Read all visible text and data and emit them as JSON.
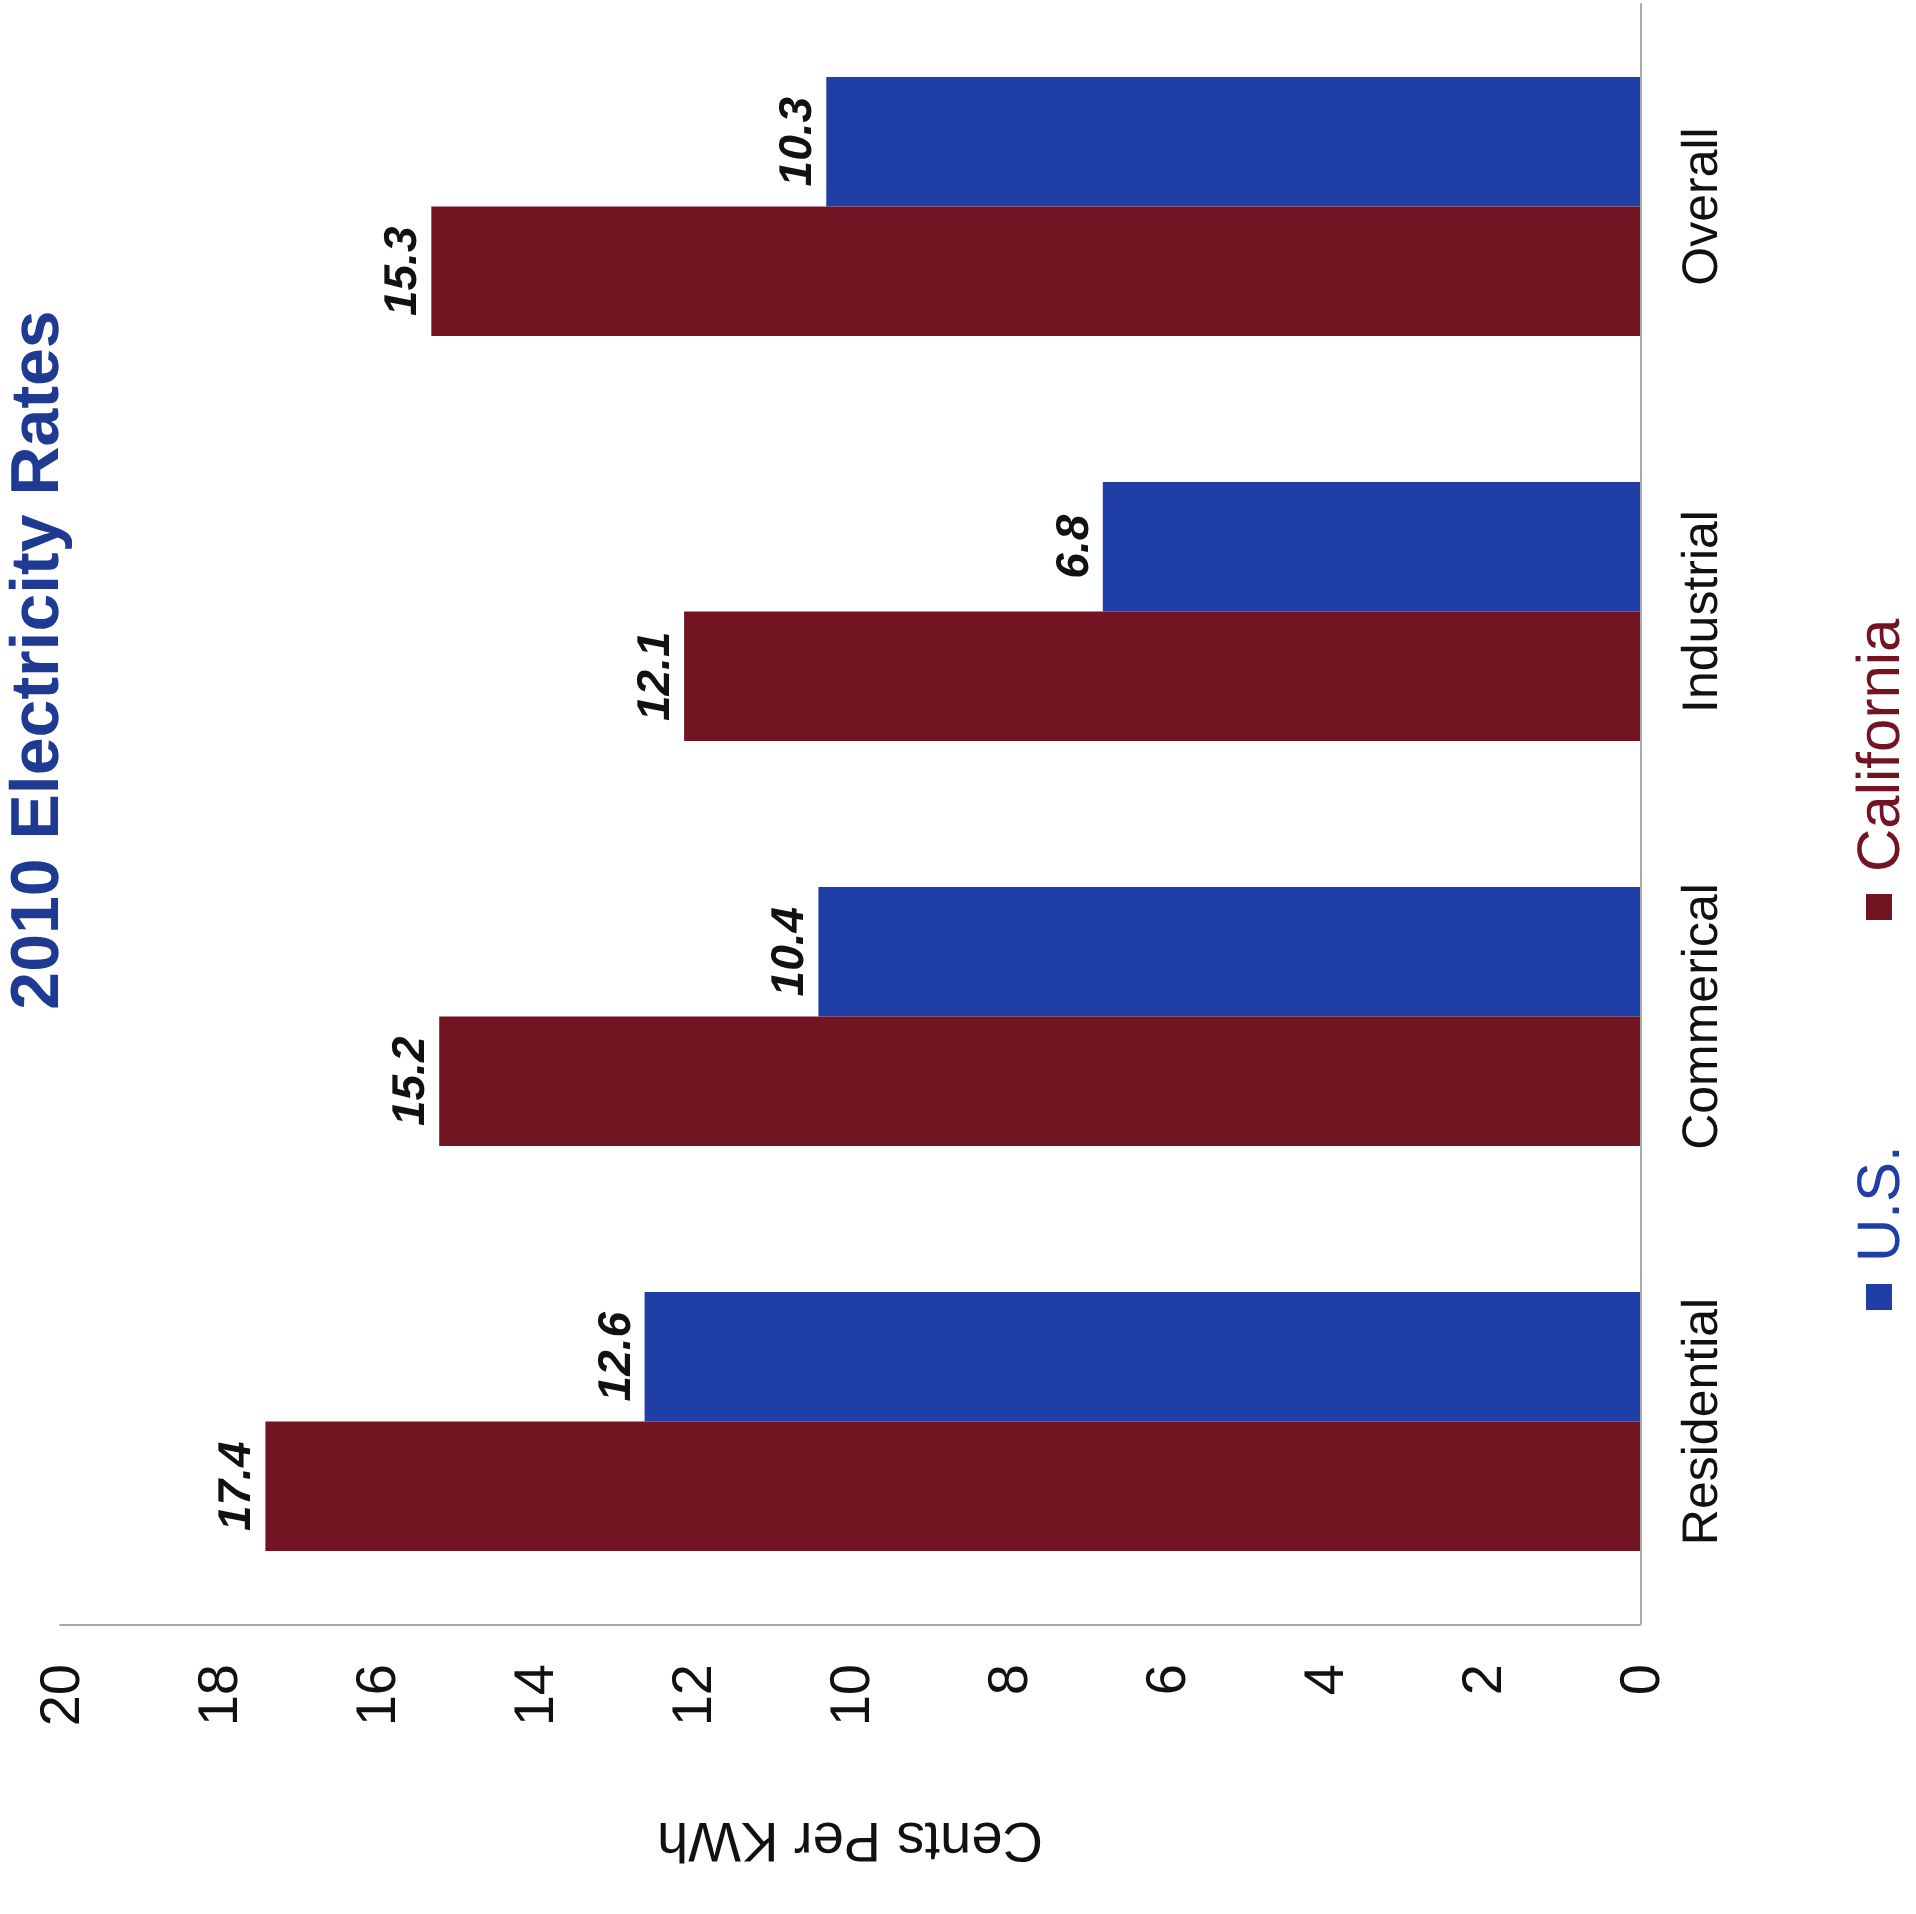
{
  "chart_data": {
    "type": "bar",
    "orientation": "horizontal",
    "title": "2010 Electricity Rates",
    "xlabel": "Cents Per KWh",
    "categories": [
      "Overall",
      "Industrial",
      "Commerical",
      "Residential"
    ],
    "series": [
      {
        "name": "U.S.",
        "color": "#1f3fa6",
        "values": [
          10.3,
          6.8,
          10.4,
          12.6
        ]
      },
      {
        "name": "California",
        "color": "#731423",
        "values": [
          15.3,
          12.1,
          15.2,
          17.4
        ]
      }
    ],
    "xlim": [
      20,
      0
    ],
    "xticks": [
      20,
      18,
      16,
      14,
      12,
      10,
      8,
      6,
      4,
      2,
      0
    ],
    "grid": false,
    "legend": "right",
    "data_labels": true
  }
}
